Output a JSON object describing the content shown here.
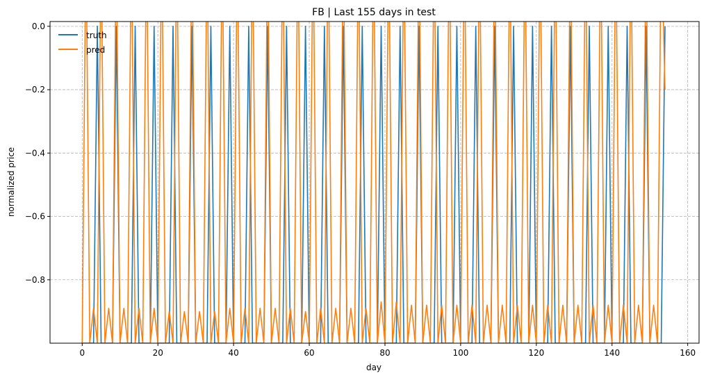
{
  "chart_data": {
    "type": "line",
    "title": "FB | Last 155 days in test",
    "xlabel": "day",
    "ylabel": "normalized price",
    "xlim": [
      -8.5,
      163
    ],
    "ylim": [
      -1.0,
      0.015
    ],
    "xticks": [
      0,
      20,
      40,
      60,
      80,
      100,
      120,
      140,
      160
    ],
    "yticks": [
      -0.8,
      -0.6,
      -0.4,
      -0.2,
      0.0
    ],
    "xtick_labels": [
      "0",
      "20",
      "40",
      "60",
      "80",
      "100",
      "120",
      "140",
      "160"
    ],
    "ytick_labels": [
      "−0.8",
      "−0.6",
      "−0.4",
      "−0.2",
      "0.0"
    ],
    "grid": true,
    "legend_position": "top-left",
    "colors": {
      "truth": "#1f77b4",
      "pred": "#ff7f0e",
      "grid": "#b0b0b0"
    },
    "series": [
      {
        "name": "truth",
        "x": [
          0,
          1,
          2,
          3,
          4,
          5,
          6,
          7,
          8,
          9,
          10,
          11,
          12,
          13,
          14,
          15,
          16,
          17,
          18,
          19,
          20,
          21,
          22,
          23,
          24,
          25,
          26,
          27,
          28,
          29,
          30,
          31,
          32,
          33,
          34,
          35,
          36,
          37,
          38,
          39,
          40,
          41,
          42,
          43,
          44,
          45,
          46,
          47,
          48,
          49,
          50,
          51,
          52,
          53,
          54,
          55,
          56,
          57,
          58,
          59,
          60,
          61,
          62,
          63,
          64,
          65,
          66,
          67,
          68,
          69,
          70,
          71,
          72,
          73,
          74,
          75,
          76,
          77,
          78,
          79,
          80,
          81,
          82,
          83,
          84,
          85,
          86,
          87,
          88,
          89,
          90,
          91,
          92,
          93,
          94,
          95,
          96,
          97,
          98,
          99,
          100,
          101,
          102,
          103,
          104,
          105,
          106,
          107,
          108,
          109,
          110,
          111,
          112,
          113,
          114,
          115,
          116,
          117,
          118,
          119,
          120,
          121,
          122,
          123,
          124,
          125,
          126,
          127,
          128,
          129,
          130,
          131,
          132,
          133,
          134,
          135,
          136,
          137,
          138,
          139,
          140,
          141,
          142,
          143,
          144,
          145,
          146,
          147,
          148,
          149,
          150,
          151,
          152,
          153,
          154
        ],
        "y": [
          -1,
          -1,
          -1,
          -1,
          0,
          -1,
          -1,
          -1,
          -1,
          0,
          -1,
          -1,
          -1,
          -1,
          0,
          -1,
          -1,
          -1,
          -1,
          0,
          -1,
          -1,
          -1,
          -1,
          0,
          -1,
          -1,
          -1,
          -1,
          0,
          -1,
          -1,
          -1,
          -1,
          0,
          -1,
          -1,
          -1,
          -1,
          0,
          -1,
          -1,
          -1,
          -1,
          0,
          -1,
          -1,
          -1,
          -1,
          0,
          -1,
          -1,
          -1,
          -1,
          0,
          -1,
          -1,
          -1,
          -1,
          0,
          -1,
          -1,
          -1,
          -1,
          0,
          -1,
          -1,
          -1,
          -1,
          0,
          -1,
          -1,
          -1,
          -1,
          0,
          -1,
          -1,
          -1,
          -1,
          0,
          -1,
          -1,
          -1,
          -1,
          0,
          -1,
          -1,
          -1,
          -1,
          0,
          -1,
          -1,
          -1,
          -1,
          0,
          -1,
          -1,
          -1,
          -1,
          0,
          -1,
          -1,
          -1,
          -1,
          0,
          -1,
          -1,
          -1,
          -1,
          0,
          -1,
          -1,
          -1,
          -1,
          0,
          -1,
          -1,
          -1,
          -1,
          0,
          -1,
          -1,
          -1,
          -1,
          0,
          -1,
          -1,
          -1,
          -1,
          0,
          -1,
          -1,
          -1,
          -1,
          0,
          -1,
          -1,
          -1,
          -1,
          0,
          -1,
          -1,
          -1,
          -1,
          0,
          -1,
          -1,
          -1,
          -1,
          0,
          -1,
          -1,
          -1,
          -1,
          0
        ]
      },
      {
        "name": "pred",
        "x": [
          0,
          1,
          2,
          3,
          4,
          5,
          6,
          7,
          8,
          9,
          10,
          11,
          12,
          13,
          14,
          15,
          16,
          17,
          18,
          19,
          20,
          21,
          22,
          23,
          24,
          25,
          26,
          27,
          28,
          29,
          30,
          31,
          32,
          33,
          34,
          35,
          36,
          37,
          38,
          39,
          40,
          41,
          42,
          43,
          44,
          45,
          46,
          47,
          48,
          49,
          50,
          51,
          52,
          53,
          54,
          55,
          56,
          57,
          58,
          59,
          60,
          61,
          62,
          63,
          64,
          65,
          66,
          67,
          68,
          69,
          70,
          71,
          72,
          73,
          74,
          75,
          76,
          77,
          78,
          79,
          80,
          81,
          82,
          83,
          84,
          85,
          86,
          87,
          88,
          89,
          90,
          91,
          92,
          93,
          94,
          95,
          96,
          97,
          98,
          99,
          100,
          101,
          102,
          103,
          104,
          105,
          106,
          107,
          108,
          109,
          110,
          111,
          112,
          113,
          114,
          115,
          116,
          117,
          118,
          119,
          120,
          121,
          122,
          123,
          124,
          125,
          126,
          127,
          128,
          129,
          130,
          131,
          132,
          133,
          134,
          135,
          136,
          137,
          138,
          139,
          140,
          141,
          142,
          143,
          144,
          145,
          146,
          147,
          148,
          149,
          150,
          151,
          152,
          153,
          154
        ],
        "y": [
          -1,
          0.3,
          -1,
          -0.89,
          -1,
          0.3,
          -1,
          -0.89,
          -1,
          0.3,
          -1,
          -0.89,
          -1,
          0.3,
          -1,
          -0.89,
          -1,
          0.3,
          -1,
          -0.89,
          -1,
          0.3,
          -1,
          -0.9,
          -1,
          0.3,
          -1,
          -0.9,
          -1,
          0.3,
          -1,
          -0.9,
          -1,
          0.3,
          -1,
          -0.9,
          -1,
          0.3,
          -1,
          -0.89,
          -1,
          0.3,
          -1,
          -0.89,
          -1,
          0.3,
          -1,
          -0.89,
          -1,
          0.3,
          -1,
          -0.89,
          -1,
          0.3,
          -1,
          -0.89,
          -1,
          0.3,
          -1,
          -0.9,
          -1,
          0.3,
          -1,
          -0.89,
          -1,
          0.3,
          -1,
          -0.89,
          -1,
          0.3,
          -1,
          -0.89,
          -1,
          0.3,
          -1,
          -0.89,
          -1,
          0.3,
          -1,
          -0.87,
          -1,
          0.3,
          -1,
          -0.87,
          -1,
          0.3,
          -1,
          -0.88,
          -1,
          0.3,
          -1,
          -0.88,
          -1,
          0.3,
          -1,
          -0.88,
          -1,
          0.3,
          -1,
          -0.88,
          -1,
          0.3,
          -1,
          -0.88,
          -1,
          0.3,
          -1,
          -0.88,
          -1,
          0.3,
          -1,
          -0.88,
          -1,
          0.3,
          -1,
          -0.88,
          -1,
          0.3,
          -1,
          -0.88,
          -1,
          0.3,
          -1,
          -0.88,
          -1,
          0.3,
          -1,
          -0.88,
          -1,
          0.3,
          -1,
          -0.88,
          -1,
          0.3,
          -1,
          -0.88,
          -1,
          0.3,
          -1,
          -0.88,
          -1,
          0.3,
          -1,
          -0.88,
          -1,
          0.3,
          -1,
          -0.88,
          -1,
          0.3,
          -1,
          -0.88,
          -1,
          0.3,
          -0.2
        ]
      }
    ]
  }
}
